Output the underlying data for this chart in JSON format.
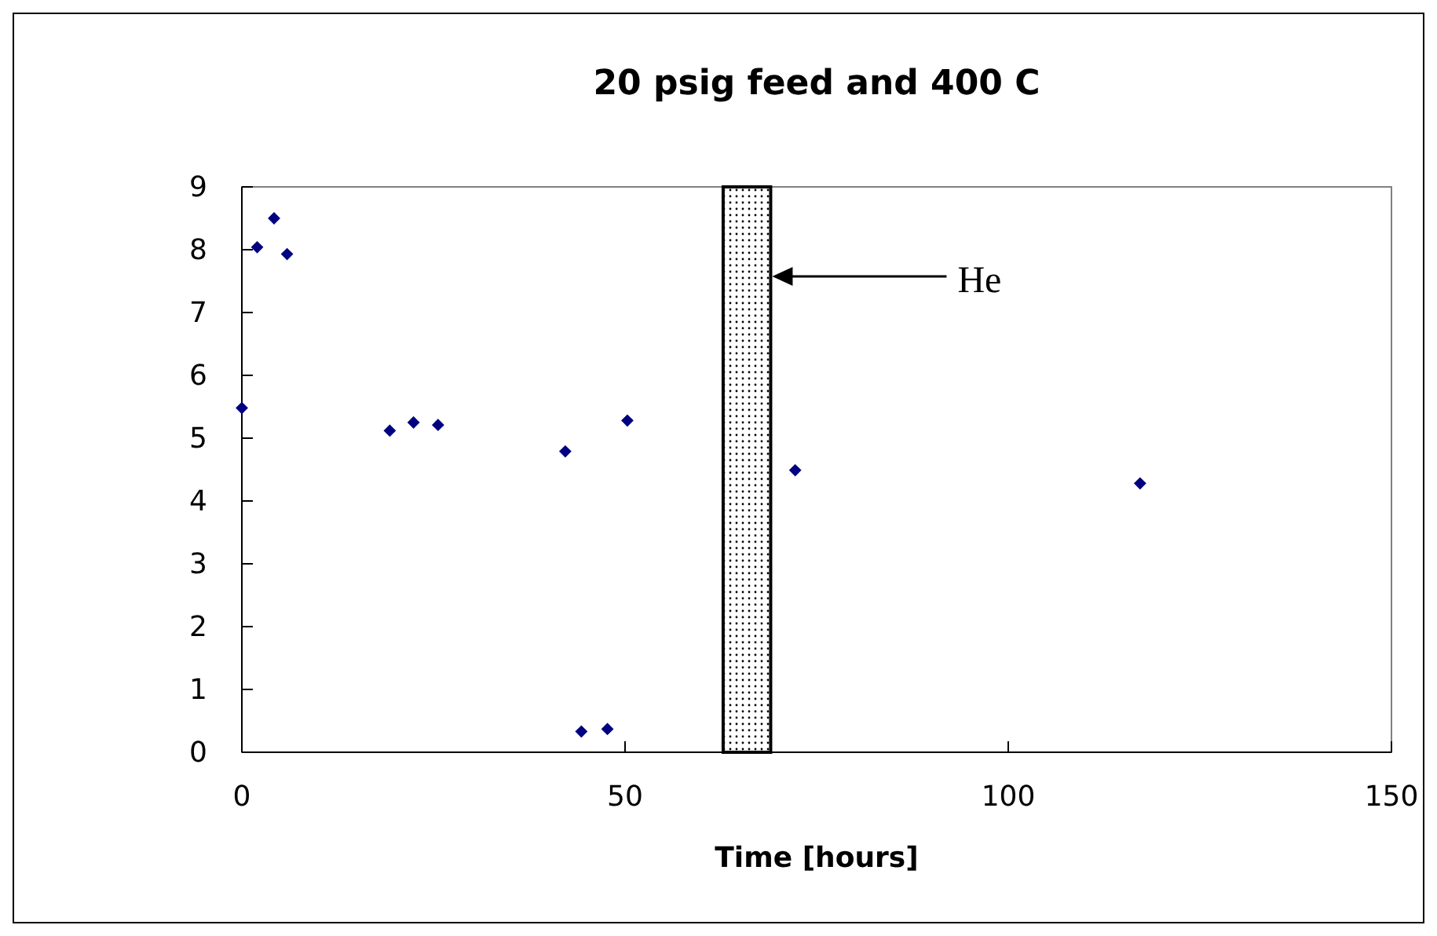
{
  "chart_data": {
    "type": "scatter",
    "title": "20 psig feed and 400 C",
    "xlabel": "Time [hours]",
    "x": [
      0,
      2.0,
      4.2,
      5.9,
      19.3,
      22.4,
      25.6,
      42.2,
      44.3,
      47.7,
      50.3,
      72.2,
      117.2
    ],
    "series": [
      {
        "color": "#000080",
        "values": [
          5.48,
          8.04,
          8.5,
          7.93,
          5.12,
          5.25,
          5.21,
          4.79,
          0.33,
          0.37,
          5.28,
          4.49,
          4.28
        ]
      }
    ],
    "marker": "diamond",
    "xlim": [
      0,
      150
    ],
    "xticks": [
      0,
      50,
      100,
      150
    ],
    "ylim": [
      0,
      9
    ],
    "yticks": [
      0,
      1,
      2,
      3,
      4,
      5,
      6,
      7,
      8,
      9
    ],
    "bands": [
      {
        "axis": "x",
        "from": 62.8,
        "to": 69.0,
        "label": "He",
        "color": "#000000"
      }
    ],
    "grid": false
  }
}
